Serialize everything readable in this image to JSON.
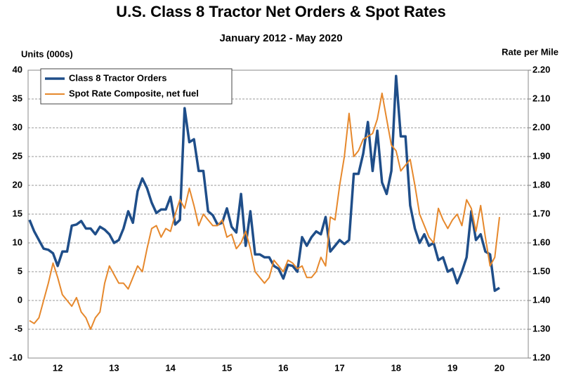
{
  "chart_data": {
    "type": "line",
    "title": "U.S. Class 8 Tractor Net Orders & Spot Rates",
    "subtitle": "January 2012 - May 2020",
    "y_label": "Units (000s)",
    "y2_label": "Rate per Mile",
    "categories": [
      null,
      null,
      null,
      null,
      null,
      null,
      "12",
      null,
      null,
      null,
      null,
      null,
      null,
      null,
      null,
      null,
      null,
      null,
      "13",
      null,
      null,
      null,
      null,
      null,
      null,
      null,
      null,
      null,
      null,
      null,
      "14",
      null,
      null,
      null,
      null,
      null,
      null,
      null,
      null,
      null,
      null,
      null,
      "15",
      null,
      null,
      null,
      null,
      null,
      null,
      null,
      null,
      null,
      null,
      null,
      "16",
      null,
      null,
      null,
      null,
      null,
      null,
      null,
      null,
      null,
      null,
      null,
      "17",
      null,
      null,
      null,
      null,
      null,
      null,
      null,
      null,
      null,
      null,
      null,
      "18",
      null,
      null,
      null,
      null,
      null,
      null,
      null,
      null,
      null,
      null,
      null,
      "19",
      null,
      null,
      null,
      null,
      null,
      null,
      null,
      null,
      null,
      "20"
    ],
    "series": [
      {
        "name": "Class 8 Tractor Orders",
        "color": "#1f4e89",
        "axis": "y",
        "values": [
          14,
          12,
          10.5,
          9,
          8.8,
          8.2,
          6,
          8.5,
          8.5,
          13,
          13.2,
          13.8,
          12.5,
          12.5,
          11.5,
          12.8,
          12.3,
          11.5,
          10,
          10.5,
          12.5,
          15.5,
          13.5,
          19,
          21.2,
          19.5,
          17,
          15.2,
          15.8,
          15.8,
          18,
          13.2,
          14,
          33.4,
          27.5,
          28,
          22.5,
          22.5,
          15.5,
          14.8,
          13.2,
          13.5,
          16,
          12.8,
          11.8,
          18.5,
          9.5,
          15.5,
          8,
          8,
          7.5,
          7.5,
          6,
          5.5,
          3.8,
          6.2,
          6,
          5,
          11,
          9.5,
          11,
          12,
          11.5,
          14.5,
          8.5,
          9.5,
          10.5,
          9.8,
          10.5,
          22,
          22,
          25.5,
          31,
          22.5,
          29.5,
          20.5,
          18.5,
          22.5,
          39,
          28.5,
          28.5,
          16.5,
          12.5,
          10,
          11.5,
          9.5,
          10,
          7,
          7.5,
          5,
          5.5,
          3,
          5,
          7.5,
          15.5,
          10.5,
          11.5,
          8.5,
          8,
          1.7,
          2.2
        ]
      },
      {
        "name": "Spot Rate Composite, net fuel",
        "color": "#e6882c",
        "axis": "y2",
        "values": [
          1.33,
          1.32,
          1.34,
          1.4,
          1.46,
          1.53,
          1.48,
          1.42,
          1.4,
          1.38,
          1.41,
          1.36,
          1.34,
          1.3,
          1.34,
          1.36,
          1.46,
          1.52,
          1.49,
          1.46,
          1.46,
          1.44,
          1.48,
          1.52,
          1.5,
          1.58,
          1.65,
          1.66,
          1.62,
          1.65,
          1.64,
          1.7,
          1.75,
          1.72,
          1.79,
          1.73,
          1.66,
          1.7,
          1.68,
          1.66,
          1.66,
          1.68,
          1.62,
          1.63,
          1.58,
          1.6,
          1.64,
          1.58,
          1.5,
          1.48,
          1.46,
          1.48,
          1.54,
          1.52,
          1.5,
          1.54,
          1.53,
          1.51,
          1.52,
          1.48,
          1.48,
          1.5,
          1.55,
          1.52,
          1.69,
          1.68,
          1.8,
          1.9,
          2.05,
          1.9,
          1.92,
          1.96,
          1.97,
          1.98,
          2.03,
          2.12,
          2.03,
          1.94,
          1.92,
          1.85,
          1.87,
          1.89,
          1.8,
          1.7,
          1.66,
          1.62,
          1.6,
          1.72,
          1.68,
          1.65,
          1.68,
          1.7,
          1.66,
          1.75,
          1.72,
          1.64,
          1.73,
          1.62,
          1.52,
          1.55,
          1.69
        ]
      }
    ],
    "ylim": [
      -10,
      40
    ],
    "yticks": [
      -10,
      -5,
      0,
      5,
      10,
      15,
      20,
      25,
      30,
      35,
      40
    ],
    "y2lim": [
      1.2,
      2.2
    ],
    "y2ticks": [
      {
        "value": 1.2,
        "label": "1.20"
      },
      {
        "value": 1.3,
        "label": "1.30"
      },
      {
        "value": 1.4,
        "label": "1.40"
      },
      {
        "value": 1.5,
        "label": "1.50"
      },
      {
        "value": 1.6,
        "label": "1.60"
      },
      {
        "value": 1.7,
        "label": "1.70"
      },
      {
        "value": 1.8,
        "label": "1.80"
      },
      {
        "value": 1.9,
        "label": "1.90"
      },
      {
        "value": 2.0,
        "label": "2.00"
      },
      {
        "value": 2.1,
        "label": "2.10"
      },
      {
        "value": 2.2,
        "label": "2.20"
      }
    ],
    "grid": true,
    "legend": "upper-left"
  }
}
